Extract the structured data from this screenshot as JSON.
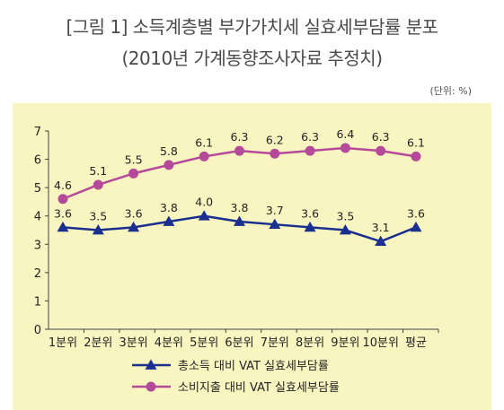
{
  "title_line1": "[그림 1] 소득계층별 부가가치세 실효세부담률 분포",
  "title_line2": "(2010년 가계동향조사자료 추정치)",
  "unit": "(단위: %)",
  "chart_data": {
    "type": "line",
    "categories": [
      "1분위",
      "2분위",
      "3분위",
      "4분위",
      "5분위",
      "6분위",
      "7분위",
      "8분위",
      "9분위",
      "10분위",
      "평균"
    ],
    "ylim": [
      0,
      7
    ],
    "yticks": [
      "0",
      "1",
      "2",
      "3",
      "4",
      "5",
      "6",
      "7"
    ],
    "grid": false,
    "legend_position": "bottom",
    "series": [
      {
        "name": "총소득 대비 VAT 실효세부담률",
        "marker": "triangle",
        "color": "#1b2f8f",
        "values": [
          3.6,
          3.5,
          3.6,
          3.8,
          4.0,
          3.8,
          3.7,
          3.6,
          3.5,
          3.1,
          3.6
        ],
        "labels": [
          "3.6",
          "3.5",
          "3.6",
          "3.8",
          "4.0",
          "3.8",
          "3.7",
          "3.6",
          "3.5",
          "3.1",
          "3.6"
        ]
      },
      {
        "name": "소비지출 대비 VAT 실효세부담률",
        "marker": "circle",
        "color": "#b64a9a",
        "values": [
          4.6,
          5.1,
          5.5,
          5.8,
          6.1,
          6.3,
          6.2,
          6.3,
          6.4,
          6.3,
          6.1
        ],
        "labels": [
          "4.6",
          "5.1",
          "5.5",
          "5.8",
          "6.1",
          "6.3",
          "6.2",
          "6.3",
          "6.4",
          "6.3",
          "6.1"
        ]
      }
    ]
  }
}
